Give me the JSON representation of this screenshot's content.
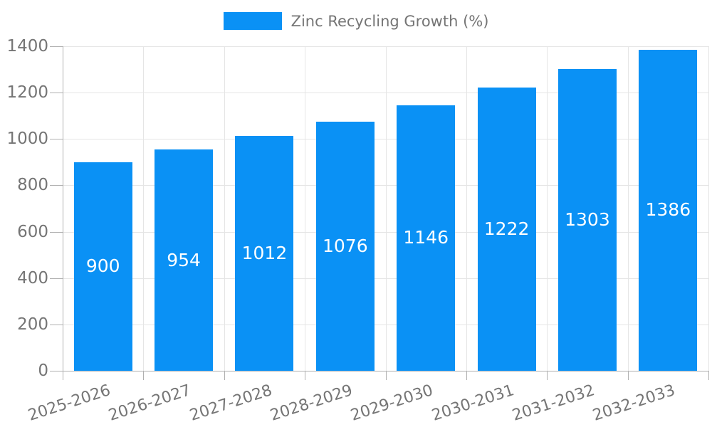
{
  "chart_data": {
    "type": "bar",
    "legend": "Zinc Recycling Growth (%)",
    "legend_position": "top-center",
    "categories": [
      "2025-2026",
      "2026-2027",
      "2027-2028",
      "2028-2029",
      "2029-2030",
      "2030-2031",
      "2031-2032",
      "2032-2033"
    ],
    "values": [
      900,
      954,
      1012,
      1076,
      1146,
      1222,
      1303,
      1386
    ],
    "bar_value_labels": [
      "900",
      "954",
      "1012",
      "1076",
      "1146",
      "1222",
      "1303",
      "1386"
    ],
    "xlabel": "",
    "ylabel": "",
    "ylim": [
      0,
      1400
    ],
    "yticks": [
      0,
      200,
      400,
      600,
      800,
      1000,
      1200,
      1400
    ],
    "grid": true,
    "x_labels_rotated": true,
    "colors": {
      "bar": "#0a91f5",
      "grid": "#e5e5e5",
      "axis": "#b0b0b0",
      "label_text": "#757575",
      "bar_label_text": "#ffffff",
      "background": "#ffffff"
    }
  }
}
